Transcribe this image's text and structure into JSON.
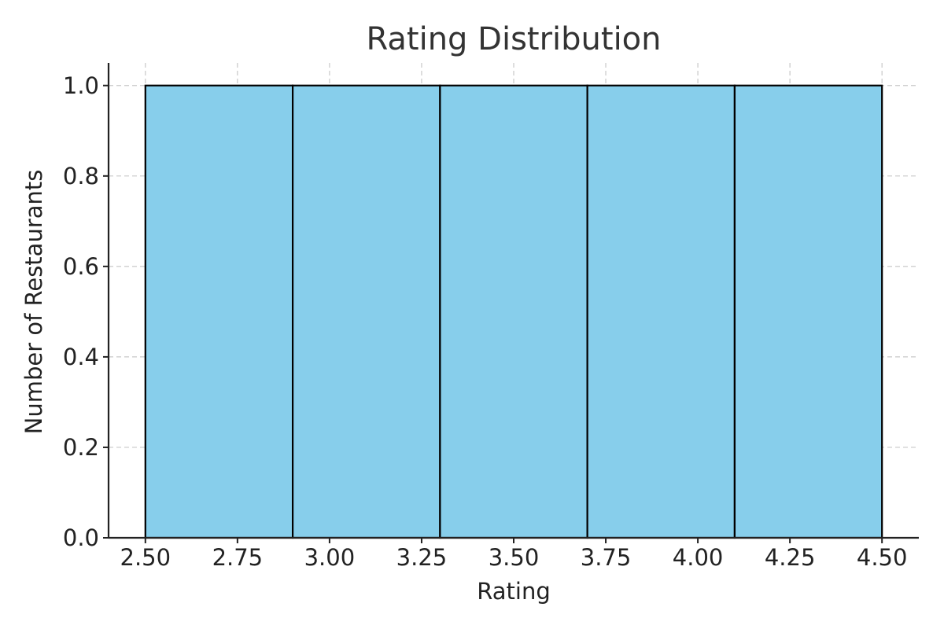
{
  "chart_data": {
    "type": "bar",
    "title": "Rating Distribution",
    "xlabel": "Rating",
    "ylabel": "Number of Restaurants",
    "bins": [
      {
        "start": 2.5,
        "end": 2.9,
        "value": 1
      },
      {
        "start": 2.9,
        "end": 3.3,
        "value": 1
      },
      {
        "start": 3.3,
        "end": 3.7,
        "value": 1
      },
      {
        "start": 3.7,
        "end": 4.1,
        "value": 1
      },
      {
        "start": 4.1,
        "end": 4.5,
        "value": 1
      }
    ],
    "xlim": [
      2.4,
      4.6
    ],
    "ylim": [
      0,
      1.05
    ],
    "xticks": [
      "2.50",
      "2.75",
      "3.00",
      "3.25",
      "3.50",
      "3.75",
      "4.00",
      "4.25",
      "4.50"
    ],
    "yticks": [
      "0.0",
      "0.2",
      "0.4",
      "0.6",
      "0.8",
      "1.0"
    ],
    "grid": true,
    "bar_color": "#87CEEB",
    "edge_color": "#000000"
  }
}
